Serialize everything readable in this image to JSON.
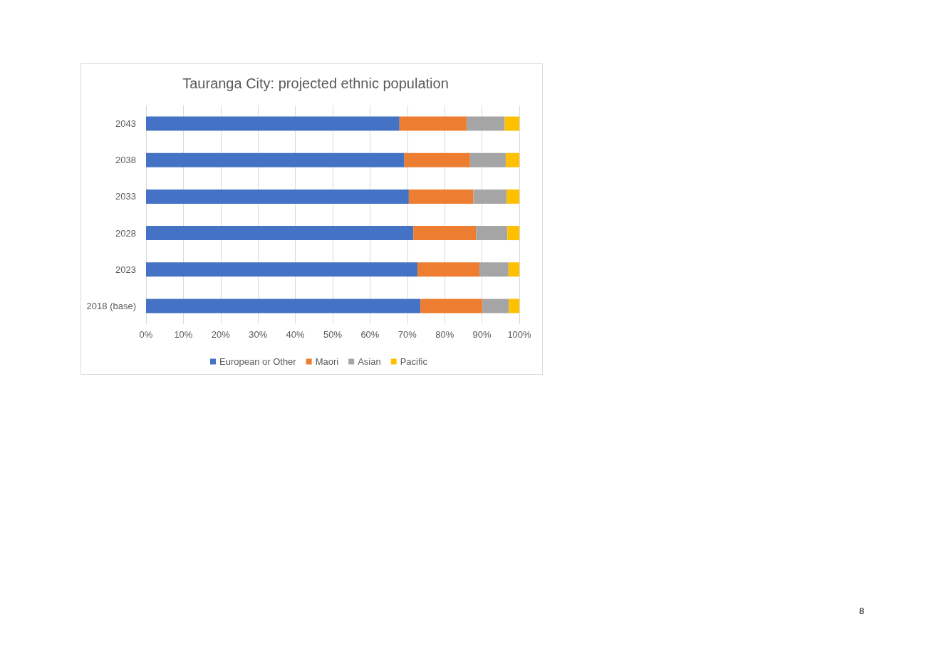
{
  "chart_data": {
    "type": "bar",
    "title": "Tauranga City: projected ethnic population",
    "orientation": "horizontal",
    "stacked": true,
    "categories": [
      "2043",
      "2038",
      "2033",
      "2028",
      "2023",
      "2018 (base)"
    ],
    "series": [
      {
        "name": "European or Other",
        "color": "#4472c4",
        "values": [
          67.9,
          69.2,
          70.4,
          71.6,
          72.7,
          73.5
        ]
      },
      {
        "name": "Maori",
        "color": "#ed7d31",
        "values": [
          18.0,
          17.6,
          17.3,
          16.8,
          16.6,
          16.6
        ]
      },
      {
        "name": "Asian",
        "color": "#a5a5a5",
        "values": [
          10.2,
          9.6,
          8.9,
          8.4,
          7.8,
          7.1
        ]
      },
      {
        "name": "Pacific",
        "color": "#ffc000",
        "values": [
          3.9,
          3.6,
          3.4,
          3.2,
          2.9,
          2.8
        ]
      }
    ],
    "xlim": [
      0,
      100
    ],
    "xticks": [
      {
        "value": 0,
        "label": "0%"
      },
      {
        "value": 10,
        "label": "10%"
      },
      {
        "value": 20,
        "label": "20%"
      },
      {
        "value": 30,
        "label": "30%"
      },
      {
        "value": 40,
        "label": "40%"
      },
      {
        "value": 50,
        "label": "50%"
      },
      {
        "value": 60,
        "label": "60%"
      },
      {
        "value": 70,
        "label": "70%"
      },
      {
        "value": 80,
        "label": "80%"
      },
      {
        "value": 90,
        "label": "90%"
      },
      {
        "value": 100,
        "label": "100%"
      }
    ],
    "grid": "x",
    "legend": "bottom",
    "annotations": [
      "8"
    ]
  }
}
